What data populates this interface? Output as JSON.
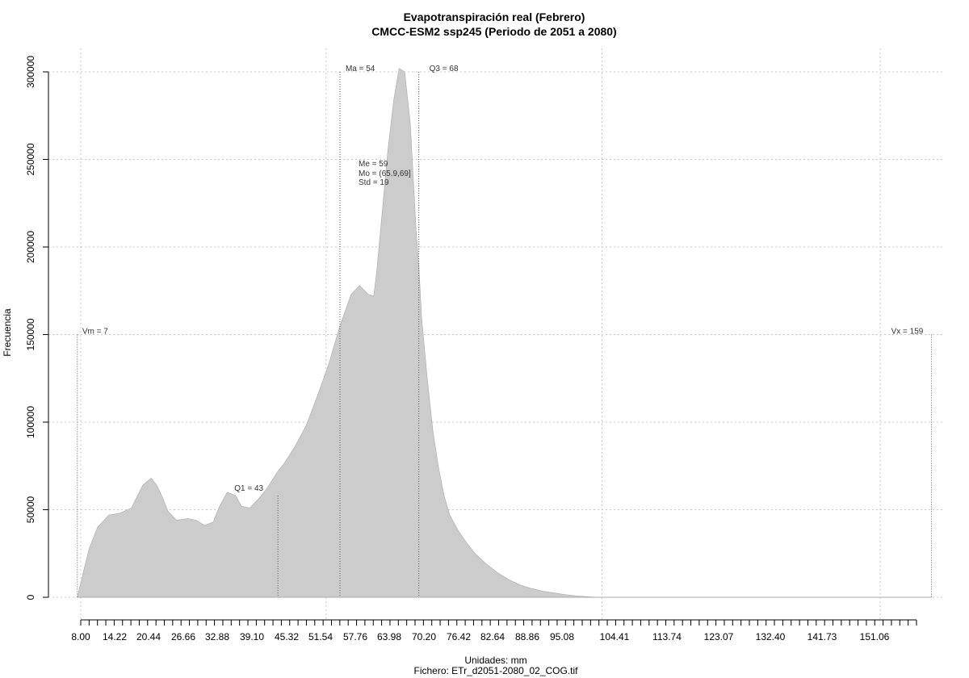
{
  "chart_data": {
    "type": "area",
    "title": "Evapotranspiración real (Febrero)",
    "subtitle": "CMCC-ESM2 ssp245 (Periodo de 2051 a 2080)",
    "xlabel": "Unidades: mm",
    "ylabel": "Frecuencia",
    "caption": "Fichero: ETr_d2051-2080_02_COG.tif",
    "xlim": [
      8.0,
      159
    ],
    "ylim": [
      0,
      300000
    ],
    "fill_color": "#cccccc",
    "grid": true,
    "x_tick_labels": [
      "8.00",
      "14.22",
      "20.44",
      "26.66",
      "32.88",
      "39.10",
      "45.32",
      "51.54",
      "57.76",
      "63.98",
      "70.20",
      "76.42",
      "82.64",
      "88.86",
      "95.08",
      "104.41",
      "113.74",
      "123.07",
      "132.40",
      "141.73",
      "151.06"
    ],
    "y_ticks": [
      0,
      50000,
      100000,
      150000,
      200000,
      250000,
      300000
    ],
    "y_tick_labels": [
      "0",
      "50000",
      "100000",
      "150000",
      "200000",
      "250000",
      "300000"
    ],
    "x": [
      7.4,
      8.5,
      9.5,
      11,
      13,
      15,
      17,
      19,
      20.5,
      21.5,
      22.5,
      23.5,
      25,
      27,
      28.5,
      30,
      31.5,
      32.5,
      34,
      35.5,
      36.5,
      38,
      39.5,
      41,
      42,
      43,
      44,
      46,
      48,
      50,
      52,
      54,
      56,
      57.5,
      59,
      60,
      60.5,
      61.5,
      62.5,
      63.5,
      64.5,
      65.5,
      66.5,
      67.5,
      68,
      68.5,
      69.5,
      70.5,
      71.5,
      72.5,
      73.5,
      75,
      76.5,
      78,
      80,
      82,
      84,
      86,
      88,
      90,
      92,
      94,
      96,
      98,
      100,
      102,
      105,
      108,
      112,
      120,
      130,
      140,
      150,
      159
    ],
    "y": [
      0,
      15000,
      28000,
      40000,
      47000,
      48000,
      51000,
      64000,
      68000,
      64000,
      57000,
      49000,
      44000,
      45000,
      44000,
      41000,
      43000,
      51000,
      60000,
      58000,
      52000,
      51000,
      56000,
      62000,
      67000,
      72000,
      76000,
      86000,
      98000,
      115000,
      133000,
      155000,
      173000,
      178000,
      173000,
      172000,
      185000,
      220000,
      255000,
      283000,
      302000,
      300000,
      270000,
      210000,
      190000,
      160000,
      125000,
      95000,
      74000,
      58000,
      47000,
      38000,
      31000,
      25000,
      19000,
      14000,
      10000,
      7000,
      5000,
      3500,
      2500,
      1500,
      800,
      300,
      0,
      0,
      0,
      0,
      0,
      0,
      0,
      0,
      0,
      0
    ],
    "stats": [
      {
        "label": "Vm = 7",
        "x": 7.4
      },
      {
        "label": "Q1 = 43",
        "x": 43
      },
      {
        "label": "Ma = 54",
        "x": 54
      },
      {
        "label": "Q3 = 68",
        "x": 68
      },
      {
        "label": "Vx = 159",
        "x": 159
      }
    ],
    "summary": [
      "Me = 59",
      "Mo = (65.9,69]",
      "Std = 19"
    ]
  }
}
